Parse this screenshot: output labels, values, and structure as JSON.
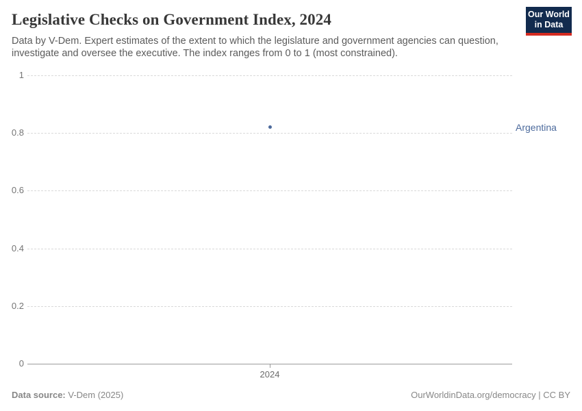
{
  "header": {
    "title": "Legislative Checks on Government Index, 2024",
    "subtitle_line1": "Data by V-Dem. Expert estimates of the extent to which the legislature and government agencies can question,",
    "subtitle_line2": "investigate and oversee the executive. The index ranges from 0 to 1 (most constrained).",
    "logo": {
      "line1": "Our World",
      "line2": "in Data",
      "bg_color": "#122B4E",
      "stripe_color": "#D42B21"
    }
  },
  "chart_data": {
    "type": "scatter",
    "title": "Legislative Checks on Government Index, 2024",
    "x": [
      2024
    ],
    "series": [
      {
        "name": "Argentina",
        "values": [
          0.82
        ],
        "color": "#4C6A9C"
      }
    ],
    "xlabel": "",
    "ylabel": "",
    "ylim": [
      0,
      1
    ],
    "y_ticks": [
      1,
      0.8,
      0.6,
      0.4,
      0.2,
      0
    ],
    "y_tick_labels": [
      "1",
      "0.8",
      "0.6",
      "0.4",
      "0.2",
      "0"
    ],
    "x_tick_labels": [
      "2024"
    ],
    "grid": "horizontal-dashed",
    "legend_position": "right-of-point-label"
  },
  "footer": {
    "source_label": "Data source:",
    "source_value": " V-Dem (2025)",
    "credit": "OurWorldinData.org/democracy | CC BY"
  }
}
